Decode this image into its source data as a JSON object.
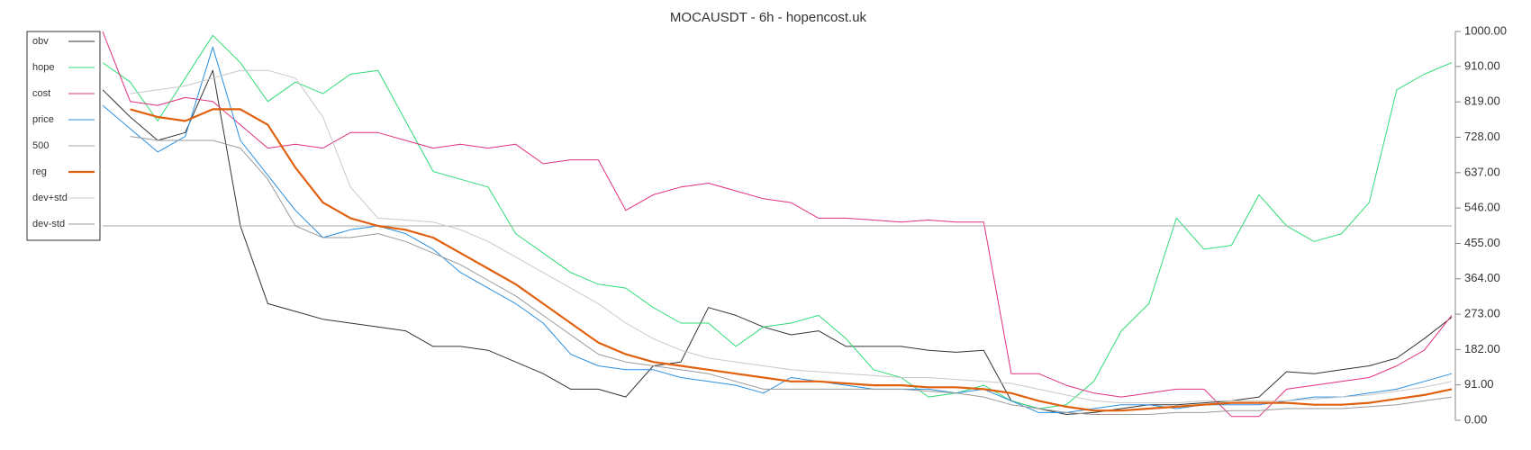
{
  "chart_data": {
    "type": "line",
    "title": "MOCAUSDT - 6h - hopencost.uk",
    "ylim": [
      0,
      1000
    ],
    "yticks": [
      {
        "value": 0,
        "label": "0.00"
      },
      {
        "value": 91,
        "label": "91.00"
      },
      {
        "value": 182,
        "label": "182.00"
      },
      {
        "value": 273,
        "label": "273.00"
      },
      {
        "value": 364,
        "label": "364.00"
      },
      {
        "value": 455,
        "label": "455.00"
      },
      {
        "value": 546,
        "label": "546.00"
      },
      {
        "value": 637,
        "label": "637.00"
      },
      {
        "value": 728,
        "label": "728.00"
      },
      {
        "value": 819,
        "label": "819.00"
      },
      {
        "value": 910,
        "label": "910.00"
      },
      {
        "value": 1000,
        "label": "1000.00"
      }
    ],
    "legend": "upper left",
    "series": [
      {
        "name": "obv",
        "color": "#333333",
        "width": 1,
        "values": [
          850,
          780,
          720,
          740,
          900,
          500,
          300,
          280,
          260,
          250,
          240,
          230,
          190,
          190,
          180,
          150,
          120,
          80,
          80,
          60,
          140,
          150,
          290,
          270,
          240,
          220,
          230,
          190,
          190,
          190,
          180,
          175,
          180,
          50,
          30,
          15,
          20,
          30,
          40,
          40,
          45,
          50,
          60,
          125,
          120,
          130,
          140,
          160,
          210,
          265
        ]
      },
      {
        "name": "hope",
        "color": "#2fdc78",
        "width": 1,
        "values": [
          920,
          870,
          770,
          880,
          990,
          920,
          820,
          870,
          840,
          890,
          900,
          770,
          640,
          620,
          600,
          480,
          430,
          380,
          350,
          340,
          290,
          250,
          250,
          190,
          240,
          250,
          270,
          210,
          130,
          110,
          60,
          70,
          90,
          50,
          30,
          40,
          100,
          230,
          300,
          520,
          440,
          450,
          580,
          500,
          460,
          480,
          560,
          850,
          890,
          920
        ]
      },
      {
        "name": "cost",
        "color": "#e0307f",
        "width": 1,
        "values": [
          1000,
          820,
          810,
          830,
          820,
          760,
          700,
          710,
          700,
          740,
          740,
          720,
          700,
          710,
          700,
          710,
          660,
          670,
          670,
          540,
          580,
          600,
          610,
          590,
          570,
          560,
          520,
          520,
          515,
          510,
          515,
          510,
          510,
          120,
          120,
          90,
          70,
          60,
          70,
          80,
          80,
          10,
          10,
          80,
          90,
          100,
          110,
          140,
          180,
          270
        ]
      },
      {
        "name": "price",
        "color": "#2b8fe0",
        "width": 1,
        "values": [
          810,
          750,
          690,
          730,
          960,
          720,
          630,
          540,
          470,
          490,
          500,
          480,
          440,
          380,
          340,
          300,
          250,
          170,
          140,
          130,
          130,
          110,
          100,
          90,
          70,
          110,
          100,
          90,
          80,
          80,
          80,
          70,
          80,
          50,
          20,
          20,
          30,
          40,
          40,
          30,
          40,
          40,
          40,
          50,
          60,
          60,
          70,
          80,
          100,
          120
        ]
      },
      {
        "name": "500",
        "color": "#aaaaaa",
        "width": 1,
        "values": [
          500,
          500,
          500,
          500,
          500,
          500,
          500,
          500,
          500,
          500,
          500,
          500,
          500,
          500,
          500,
          500,
          500,
          500,
          500,
          500,
          500,
          500,
          500,
          500,
          500,
          500,
          500,
          500,
          500,
          500,
          500,
          500,
          500,
          500,
          500,
          500,
          500,
          500,
          500,
          500,
          500,
          500,
          500,
          500,
          500,
          500,
          500,
          500,
          500,
          500
        ]
      },
      {
        "name": "reg",
        "color": "#e0600e",
        "width": 2.2,
        "values": [
          null,
          800,
          780,
          770,
          800,
          800,
          760,
          650,
          560,
          520,
          500,
          490,
          470,
          430,
          390,
          350,
          300,
          250,
          200,
          170,
          150,
          140,
          130,
          120,
          110,
          100,
          100,
          95,
          90,
          90,
          85,
          85,
          80,
          70,
          50,
          35,
          25,
          25,
          30,
          35,
          40,
          45,
          45,
          45,
          40,
          40,
          45,
          55,
          65,
          80
        ]
      },
      {
        "name": "dev+std",
        "color": "#c8c8c8",
        "width": 1,
        "values": [
          null,
          840,
          850,
          860,
          880,
          900,
          900,
          880,
          780,
          600,
          520,
          515,
          510,
          490,
          460,
          420,
          380,
          340,
          300,
          250,
          210,
          180,
          160,
          150,
          140,
          130,
          125,
          120,
          115,
          110,
          110,
          105,
          100,
          95,
          80,
          65,
          50,
          45,
          45,
          45,
          50,
          50,
          50,
          50,
          55,
          60,
          65,
          75,
          85,
          100
        ]
      },
      {
        "name": "dev-std",
        "color": "#999999",
        "width": 1,
        "values": [
          null,
          730,
          720,
          720,
          720,
          700,
          620,
          500,
          470,
          470,
          480,
          460,
          430,
          400,
          360,
          320,
          270,
          220,
          170,
          150,
          140,
          130,
          120,
          100,
          80,
          80,
          80,
          80,
          80,
          80,
          75,
          70,
          60,
          40,
          30,
          20,
          15,
          15,
          15,
          20,
          20,
          25,
          25,
          30,
          30,
          30,
          35,
          40,
          50,
          60
        ]
      }
    ]
  }
}
